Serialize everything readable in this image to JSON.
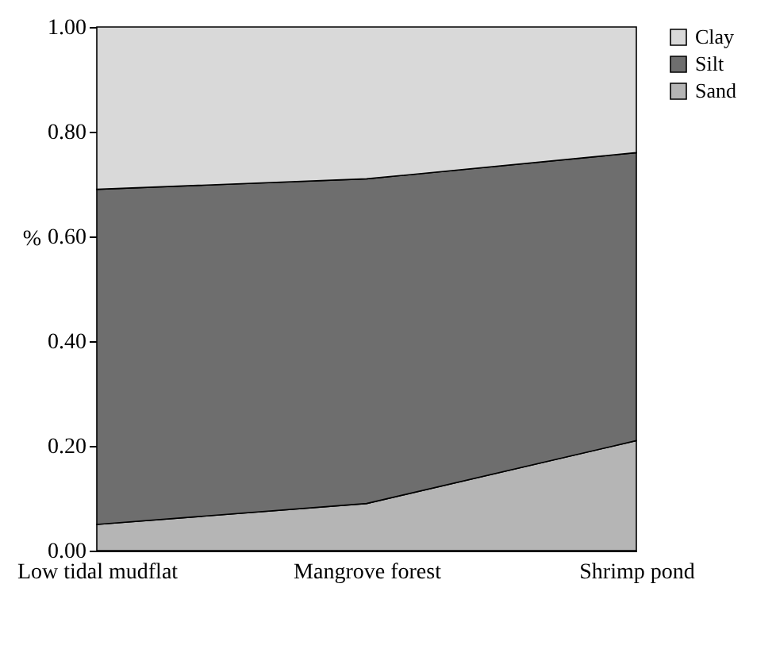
{
  "chart_data": {
    "type": "area",
    "stacked": true,
    "ylabel": "%",
    "legend": "right",
    "grid": false,
    "categories": [
      "Low tidal mudflat",
      "Mangrove forest",
      "Shrimp pond"
    ],
    "ylim": [
      0,
      1
    ],
    "yticks": [
      {
        "value": 0,
        "label": "0.00"
      },
      {
        "value": 0.2,
        "label": "0.20"
      },
      {
        "value": 0.4,
        "label": "0.40"
      },
      {
        "value": 0.6,
        "label": "0.60"
      },
      {
        "value": 0.8,
        "label": "0.80"
      },
      {
        "value": 1,
        "label": "1.00"
      }
    ],
    "series": [
      {
        "name": "Sand",
        "color": "#b5b5b5",
        "values": [
          0.05,
          0.09,
          0.21
        ]
      },
      {
        "name": "Silt",
        "color": "#6e6e6e",
        "values": [
          0.64,
          0.62,
          0.55
        ]
      },
      {
        "name": "Clay",
        "color": "#d9d9d9",
        "values": [
          0.31,
          0.29,
          0.24
        ]
      }
    ]
  }
}
